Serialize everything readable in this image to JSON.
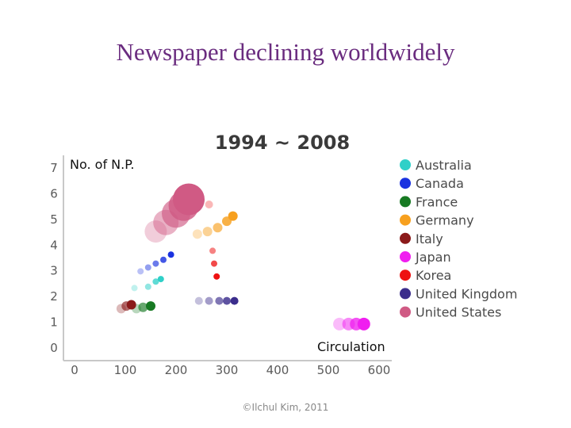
{
  "slide": {
    "title": "Newspaper declining worldwidely",
    "footer": "©Ilchul Kim, 2011"
  },
  "chart_data": {
    "type": "scatter",
    "title": "1994 ~ 2008",
    "ylabel": "No. of N.P.",
    "xlabel": "Circulation",
    "xlim": [
      0,
      600
    ],
    "ylim": [
      0,
      7
    ],
    "x_ticks": [
      0,
      100,
      200,
      300,
      400,
      500,
      600
    ],
    "y_ticks": [
      0,
      1,
      2,
      3,
      4,
      5,
      6,
      7
    ],
    "legend_position": "right",
    "series": [
      {
        "name": "Australia",
        "color": "#2fd0c8",
        "x": [
          118,
          145,
          160,
          170
        ],
        "y": [
          2.3,
          2.35,
          2.55,
          2.65
        ],
        "size": [
          4,
          4,
          4,
          4
        ]
      },
      {
        "name": "Canada",
        "color": "#1a32e0",
        "x": [
          130,
          145,
          160,
          175,
          190
        ],
        "y": [
          2.95,
          3.1,
          3.25,
          3.4,
          3.6
        ],
        "size": [
          4,
          4,
          4,
          4,
          4
        ]
      },
      {
        "name": "France",
        "color": "#177a23",
        "x": [
          122,
          135,
          150
        ],
        "y": [
          1.5,
          1.55,
          1.6
        ],
        "size": [
          6,
          6,
          6
        ]
      },
      {
        "name": "Germany",
        "color": "#f7a01e",
        "x": [
          242,
          262,
          282,
          300,
          312
        ],
        "y": [
          4.4,
          4.5,
          4.65,
          4.9,
          5.1
        ],
        "size": [
          6,
          6,
          6,
          6,
          6
        ]
      },
      {
        "name": "Italy",
        "color": "#8b1a1a",
        "x": [
          92,
          102,
          112
        ],
        "y": [
          1.5,
          1.6,
          1.65
        ],
        "size": [
          6,
          6,
          6
        ]
      },
      {
        "name": "Japan",
        "color": "#f01ef0",
        "x": [
          522,
          540,
          555,
          570
        ],
        "y": [
          0.9,
          0.9,
          0.9,
          0.9
        ],
        "size": [
          8,
          8,
          8,
          8
        ]
      },
      {
        "name": "Korea",
        "color": "#ee1212",
        "x": [
          265,
          272,
          275,
          280
        ],
        "y": [
          5.55,
          3.75,
          3.25,
          2.75
        ],
        "size": [
          5,
          4,
          4,
          4
        ]
      },
      {
        "name": "United Kingdom",
        "color": "#3b2d8c",
        "x": [
          245,
          265,
          285,
          300,
          315
        ],
        "y": [
          1.8,
          1.8,
          1.8,
          1.8,
          1.8
        ],
        "size": [
          5,
          5,
          5,
          5,
          5
        ]
      },
      {
        "name": "United States",
        "color": "#d05a84",
        "x": [
          160,
          180,
          200,
          215,
          225
        ],
        "y": [
          4.5,
          4.85,
          5.2,
          5.5,
          5.75
        ],
        "size": [
          14,
          16,
          18,
          19,
          20
        ]
      }
    ]
  }
}
